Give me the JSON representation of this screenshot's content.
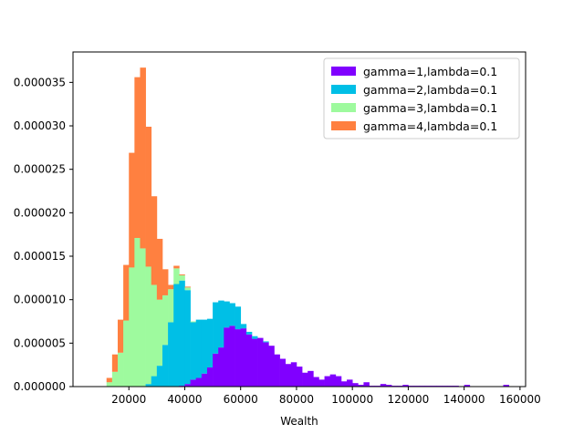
{
  "chart_data": {
    "type": "bar",
    "stacked": true,
    "title": "",
    "xlabel": "Wealth",
    "ylabel": "",
    "xlim": [
      0,
      162000
    ],
    "ylim": [
      0,
      3.85e-05
    ],
    "xticks": [
      20000,
      40000,
      60000,
      80000,
      100000,
      120000,
      140000,
      160000
    ],
    "xtick_labels": [
      "20000",
      "40000",
      "60000",
      "80000",
      "100000",
      "120000",
      "140000",
      "160000"
    ],
    "yticks": [
      0,
      5e-06,
      1e-05,
      1.5e-05,
      2e-05,
      2.5e-05,
      3e-05,
      3.5e-05
    ],
    "ytick_labels": [
      "0.000000",
      "0.000005",
      "0.000010",
      "0.000015",
      "0.000020",
      "0.000025",
      "0.000030",
      "0.000035"
    ],
    "grid": false,
    "legend_position": "top-right",
    "bin_width": 2000,
    "bin_starts": [
      10000,
      12000,
      14000,
      16000,
      18000,
      20000,
      22000,
      24000,
      26000,
      28000,
      30000,
      32000,
      34000,
      36000,
      38000,
      40000,
      42000,
      44000,
      46000,
      48000,
      50000,
      52000,
      54000,
      56000,
      58000,
      60000,
      62000,
      64000,
      66000,
      68000,
      70000,
      72000,
      74000,
      76000,
      78000,
      80000,
      82000,
      84000,
      86000,
      88000,
      90000,
      92000,
      94000,
      96000,
      98000,
      100000,
      102000,
      104000,
      106000,
      108000,
      110000,
      112000,
      114000,
      116000,
      118000,
      120000,
      122000,
      124000,
      126000,
      128000,
      130000,
      132000,
      134000,
      136000,
      138000,
      140000,
      142000,
      144000,
      146000,
      148000,
      150000,
      152000,
      154000
    ],
    "series": [
      {
        "name": "gamma=1,lambda=0.1",
        "color": "#8000ff",
        "values": [
          0,
          0,
          0,
          0,
          0,
          0,
          0,
          0,
          0,
          0,
          0,
          0,
          0,
          0,
          1e-07,
          3e-07,
          8e-07,
          1e-06,
          1.5e-06,
          2.2e-06,
          3.8e-06,
          4.5e-06,
          6.8e-06,
          7e-06,
          6.6e-06,
          6.7e-06,
          6e-06,
          5.5e-06,
          5.6e-06,
          5.1e-06,
          4.7e-06,
          3.7e-06,
          3.2e-06,
          2.6e-06,
          2.8e-06,
          2.3e-06,
          1.6e-06,
          1.8e-06,
          1.1e-06,
          8e-07,
          1.2e-06,
          1.4e-06,
          1.2e-06,
          6e-07,
          8e-07,
          4e-07,
          2e-07,
          5e-07,
          1e-07,
          1e-07,
          3e-07,
          2e-07,
          1e-07,
          1e-07,
          2e-07,
          1e-07,
          1e-07,
          1e-07,
          1e-07,
          1e-07,
          1e-07,
          1e-07,
          1e-07,
          1e-07,
          0,
          2e-07,
          0,
          0,
          0,
          0,
          0,
          0,
          2e-07
        ]
      },
      {
        "name": "gamma=2,lambda=0.1",
        "color": "#00bfe6",
        "values": [
          0,
          0,
          0,
          0,
          0,
          0,
          0,
          0,
          3e-07,
          1.2e-06,
          2.4e-06,
          4.8e-06,
          7.4e-06,
          1.18e-05,
          1.21e-05,
          1.08e-05,
          6.6e-06,
          6.7e-06,
          6.2e-06,
          5.6e-06,
          5.9e-06,
          5.4e-06,
          3e-06,
          2.6e-06,
          2.6e-06,
          5e-07,
          3e-07,
          3e-07,
          0,
          1e-07,
          0,
          0,
          0,
          0,
          0,
          0,
          0,
          0,
          0,
          0,
          0,
          0,
          0,
          0,
          0,
          0,
          0,
          0,
          0,
          0,
          0,
          0,
          0,
          0,
          0,
          0,
          0,
          0,
          0,
          0,
          0,
          0,
          0,
          0,
          0,
          0,
          0,
          0,
          0,
          0,
          0,
          0,
          0
        ]
      },
      {
        "name": "gamma=3,lambda=0.1",
        "color": "#9efa9e",
        "values": [
          0,
          5e-07,
          1.7e-06,
          3.9e-06,
          7.6e-06,
          1.37e-05,
          1.71e-05,
          1.59e-05,
          1.35e-05,
          1.05e-05,
          7.6e-06,
          5.7e-06,
          3.8e-06,
          1.8e-06,
          6e-07,
          3e-07,
          1e-07,
          0,
          0,
          0,
          0,
          0,
          0,
          0,
          0,
          0,
          0,
          0,
          0,
          0,
          0,
          0,
          0,
          0,
          0,
          0,
          0,
          0,
          0,
          0,
          0,
          0,
          0,
          0,
          0,
          0,
          0,
          0,
          0,
          0,
          0,
          0,
          0,
          0,
          0,
          0,
          0,
          0,
          0,
          0,
          0,
          0,
          0,
          0,
          0,
          0,
          0,
          0,
          0,
          0,
          0,
          0,
          0
        ]
      },
      {
        "name": "gamma=4,lambda=0.1",
        "color": "#ff8040",
        "values": [
          0,
          5e-07,
          2e-06,
          3.8e-06,
          6.4e-06,
          1.32e-05,
          1.85e-05,
          2.08e-05,
          1.61e-05,
          1.02e-05,
          7e-06,
          3e-06,
          5e-07,
          3e-07,
          1e-07,
          1e-07,
          0,
          0,
          0,
          0,
          0,
          0,
          0,
          0,
          0,
          0,
          0,
          0,
          0,
          0,
          0,
          0,
          0,
          0,
          0,
          0,
          0,
          0,
          0,
          0,
          0,
          0,
          0,
          0,
          0,
          0,
          0,
          0,
          0,
          0,
          0,
          0,
          0,
          0,
          0,
          0,
          0,
          0,
          0,
          0,
          0,
          0,
          0,
          0,
          0,
          0,
          0,
          0,
          0,
          0,
          0,
          0,
          0
        ]
      }
    ]
  }
}
